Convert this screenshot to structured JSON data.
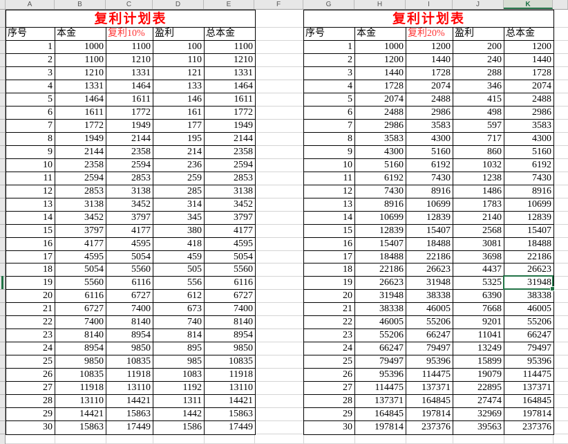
{
  "sheet": {
    "column_letters": [
      "A",
      "B",
      "C",
      "D",
      "E",
      "F",
      "G",
      "H",
      "I",
      "J",
      "K"
    ],
    "selected_column_letter": "K",
    "selected_row_number": 19
  },
  "selection": {
    "table_index": 1,
    "row_index": 19,
    "column_header": "总本金",
    "value": 31948
  },
  "colors": {
    "title_red": "#ff0000",
    "header_red": "#ff3333",
    "selection_green": "#217346",
    "grid_black": "#000000",
    "sheet_gridline": "#d4d4d4",
    "header_bg": "#e7e7e7",
    "selected_header_bg": "#d7ddd3"
  },
  "tables": [
    {
      "title": "复利计划表",
      "headers": [
        "序号",
        "本金",
        "复利10%",
        "盈利",
        "总本金"
      ],
      "red_header_index": 2,
      "rows": [
        [
          1,
          1000,
          1100,
          100,
          1100
        ],
        [
          2,
          1100,
          1210,
          110,
          1210
        ],
        [
          3,
          1210,
          1331,
          121,
          1331
        ],
        [
          4,
          1331,
          1464,
          133,
          1464
        ],
        [
          5,
          1464,
          1611,
          146,
          1611
        ],
        [
          6,
          1611,
          1772,
          161,
          1772
        ],
        [
          7,
          1772,
          1949,
          177,
          1949
        ],
        [
          8,
          1949,
          2144,
          195,
          2144
        ],
        [
          9,
          2144,
          2358,
          214,
          2358
        ],
        [
          10,
          2358,
          2594,
          236,
          2594
        ],
        [
          11,
          2594,
          2853,
          259,
          2853
        ],
        [
          12,
          2853,
          3138,
          285,
          3138
        ],
        [
          13,
          3138,
          3452,
          314,
          3452
        ],
        [
          14,
          3452,
          3797,
          345,
          3797
        ],
        [
          15,
          3797,
          4177,
          380,
          4177
        ],
        [
          16,
          4177,
          4595,
          418,
          4595
        ],
        [
          17,
          4595,
          5054,
          459,
          5054
        ],
        [
          18,
          5054,
          5560,
          505,
          5560
        ],
        [
          19,
          5560,
          6116,
          556,
          6116
        ],
        [
          20,
          6116,
          6727,
          612,
          6727
        ],
        [
          21,
          6727,
          7400,
          673,
          7400
        ],
        [
          22,
          7400,
          8140,
          740,
          8140
        ],
        [
          23,
          8140,
          8954,
          814,
          8954
        ],
        [
          24,
          8954,
          9850,
          895,
          9850
        ],
        [
          25,
          9850,
          10835,
          985,
          10835
        ],
        [
          26,
          10835,
          11918,
          1083,
          11918
        ],
        [
          27,
          11918,
          13110,
          1192,
          13110
        ],
        [
          28,
          13110,
          14421,
          1311,
          14421
        ],
        [
          29,
          14421,
          15863,
          1442,
          15863
        ],
        [
          30,
          15863,
          17449,
          1586,
          17449
        ]
      ]
    },
    {
      "title": "复利计划表",
      "headers": [
        "序号",
        "本金",
        "复利20%",
        "盈利",
        "总本金"
      ],
      "red_header_index": 2,
      "rows": [
        [
          1,
          1000,
          1200,
          200,
          1200
        ],
        [
          2,
          1200,
          1440,
          240,
          1440
        ],
        [
          3,
          1440,
          1728,
          288,
          1728
        ],
        [
          4,
          1728,
          2074,
          346,
          2074
        ],
        [
          5,
          2074,
          2488,
          415,
          2488
        ],
        [
          6,
          2488,
          2986,
          498,
          2986
        ],
        [
          7,
          2986,
          3583,
          597,
          3583
        ],
        [
          8,
          3583,
          4300,
          717,
          4300
        ],
        [
          9,
          4300,
          5160,
          860,
          5160
        ],
        [
          10,
          5160,
          6192,
          1032,
          6192
        ],
        [
          11,
          6192,
          7430,
          1238,
          7430
        ],
        [
          12,
          7430,
          8916,
          1486,
          8916
        ],
        [
          13,
          8916,
          10699,
          1783,
          10699
        ],
        [
          14,
          10699,
          12839,
          2140,
          12839
        ],
        [
          15,
          12839,
          15407,
          2568,
          15407
        ],
        [
          16,
          15407,
          18488,
          3081,
          18488
        ],
        [
          17,
          18488,
          22186,
          3698,
          22186
        ],
        [
          18,
          22186,
          26623,
          4437,
          26623
        ],
        [
          19,
          26623,
          31948,
          5325,
          31948
        ],
        [
          20,
          31948,
          38338,
          6390,
          38338
        ],
        [
          21,
          38338,
          46005,
          7668,
          46005
        ],
        [
          22,
          46005,
          55206,
          9201,
          55206
        ],
        [
          23,
          55206,
          66247,
          11041,
          66247
        ],
        [
          24,
          66247,
          79497,
          13249,
          79497
        ],
        [
          25,
          79497,
          95396,
          15899,
          95396
        ],
        [
          26,
          95396,
          114475,
          19079,
          114475
        ],
        [
          27,
          114475,
          137371,
          22895,
          137371
        ],
        [
          28,
          137371,
          164845,
          27474,
          164845
        ],
        [
          29,
          164845,
          197814,
          32969,
          197814
        ],
        [
          30,
          197814,
          237376,
          39563,
          237376
        ]
      ]
    }
  ]
}
